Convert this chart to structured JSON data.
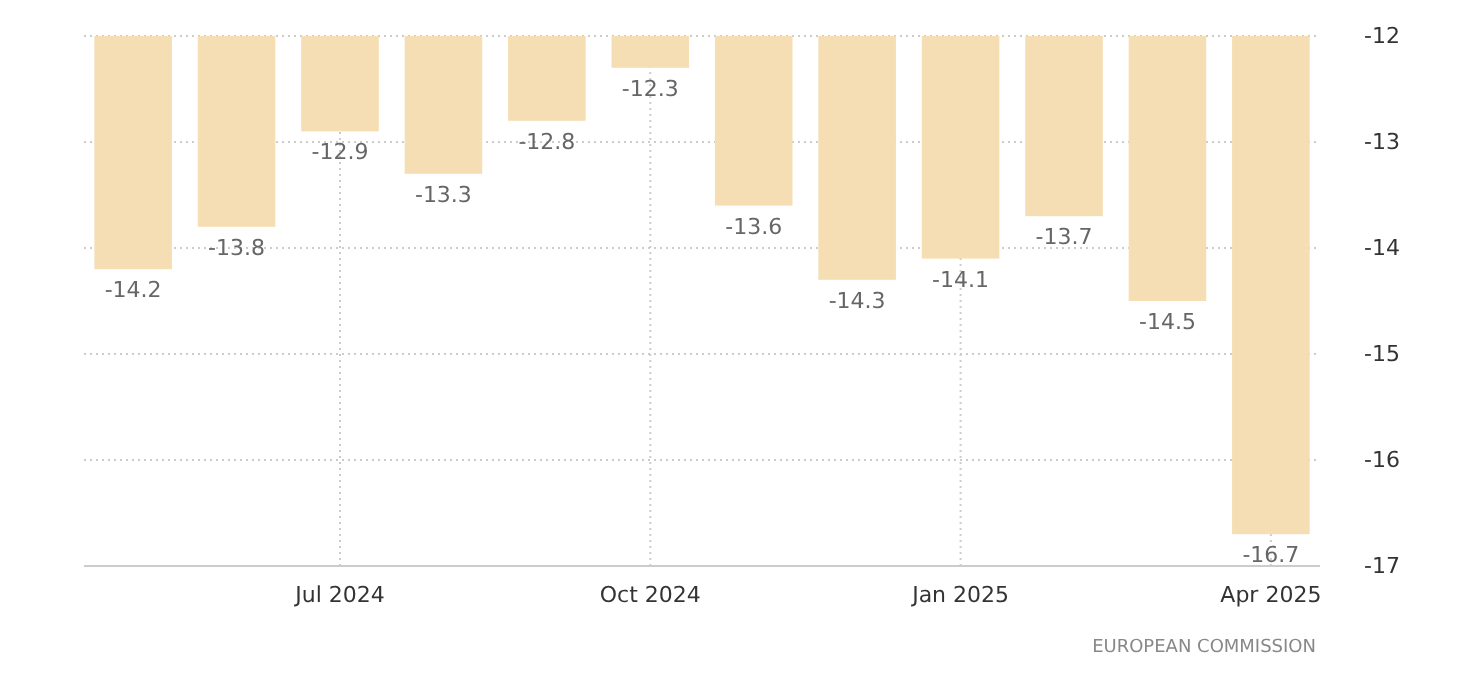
{
  "chart_data": {
    "type": "bar",
    "categories": [
      null,
      null,
      "Jul 2024",
      null,
      null,
      "Oct 2024",
      null,
      null,
      "Jan 2025",
      null,
      null,
      "Apr 2025"
    ],
    "values": [
      -14.2,
      -13.8,
      -12.9,
      -13.3,
      -12.8,
      -12.3,
      -13.6,
      -14.3,
      -14.1,
      -13.7,
      -14.5,
      -16.7
    ],
    "color": "#f5deb3",
    "ylim": [
      -17,
      -12
    ],
    "yticks": [
      -17,
      -16,
      -15,
      -14,
      -13,
      -12
    ],
    "grid": true,
    "data_labels": true,
    "annotations": [
      "EUROPEAN COMMISSION"
    ]
  }
}
